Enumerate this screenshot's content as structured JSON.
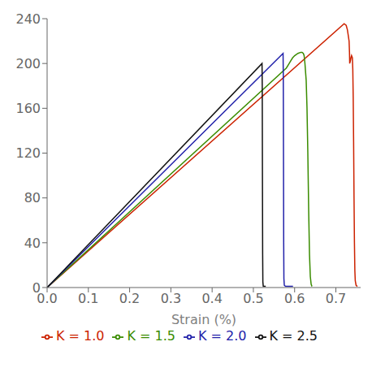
{
  "chart_data": {
    "type": "line",
    "xlabel": "Strain (%)",
    "xlim": [
      0.0,
      0.76
    ],
    "ylim": [
      0,
      240
    ],
    "yticks": [
      0,
      40,
      80,
      120,
      160,
      200,
      240
    ],
    "xticks": [
      {
        "value": 0.0,
        "label": "0.0"
      },
      0.1,
      0.2,
      0.3,
      0.4,
      0.5,
      0.6,
      0.7
    ],
    "grid": false,
    "legend": "bottom",
    "series": [
      {
        "name": "K = 1.0",
        "color": "#cc2200",
        "x": [
          0.0,
          0.72,
          0.72,
          0.725,
          0.728,
          0.73,
          0.732,
          0.733,
          0.7335,
          0.735,
          0.7365,
          0.738,
          0.74,
          0.741,
          0.742,
          0.743,
          0.744,
          0.745,
          0.746,
          0.747,
          0.749,
          0.752
        ],
        "values": [
          0.0,
          235.5,
          235.5,
          234.0,
          230.0,
          225.0,
          220.0,
          210.0,
          200.0,
          202.0,
          205.0,
          207.0,
          205.0,
          195.0,
          170.0,
          130.0,
          80.0,
          40.0,
          15.0,
          6.0,
          2.0,
          1.0
        ]
      },
      {
        "name": "K = 1.5",
        "color": "#3a8c00",
        "x": [
          0.0,
          0.58,
          0.58,
          0.585,
          0.59,
          0.595,
          0.6,
          0.608,
          0.615,
          0.618,
          0.621,
          0.623,
          0.625,
          0.628,
          0.63,
          0.632,
          0.634,
          0.636,
          0.638,
          0.64,
          0.642
        ],
        "values": [
          0.0,
          196.0,
          196.0,
          199.0,
          202.0,
          205.0,
          207.0,
          209.0,
          210.0,
          210.0,
          209.0,
          207.0,
          200.0,
          185.0,
          160.0,
          120.0,
          70.0,
          30.0,
          10.0,
          3.0,
          1.0
        ]
      },
      {
        "name": "K = 2.0",
        "color": "#2222aa",
        "x": [
          0.0,
          0.572,
          0.572,
          0.5725,
          0.573,
          0.5735,
          0.574,
          0.575,
          0.578,
          0.596
        ],
        "values": [
          0.0,
          209.0,
          209.0,
          190.0,
          120.0,
          40.0,
          8.0,
          2.0,
          1.0,
          1.0
        ]
      },
      {
        "name": "K = 2.5",
        "color": "#111111",
        "x": [
          0.0,
          0.521,
          0.521,
          0.5215,
          0.522,
          0.5225,
          0.523,
          0.524,
          0.53
        ],
        "values": [
          0.0,
          200.0,
          200.0,
          180.0,
          100.0,
          30.0,
          5.0,
          1.0,
          1.0
        ]
      }
    ]
  }
}
